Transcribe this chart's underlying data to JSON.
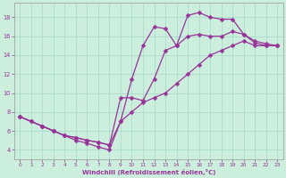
{
  "xlabel": "Windchill (Refroidissement éolien,°C)",
  "xlim": [
    -0.5,
    23.5
  ],
  "ylim": [
    3.0,
    19.5
  ],
  "xticks": [
    0,
    1,
    2,
    3,
    4,
    5,
    6,
    7,
    8,
    9,
    10,
    11,
    12,
    13,
    14,
    15,
    16,
    17,
    18,
    19,
    20,
    21,
    22,
    23
  ],
  "yticks": [
    4,
    6,
    8,
    10,
    12,
    14,
    16,
    18
  ],
  "bg_color": "#cceedd",
  "line_color": "#993399",
  "grid_color": "#aaddcc",
  "line1": {
    "x": [
      0,
      1,
      2,
      3,
      4,
      5,
      6,
      7,
      8,
      9,
      10,
      11,
      12,
      13,
      14,
      15,
      16,
      17,
      18,
      19,
      20,
      21,
      22,
      23
    ],
    "y": [
      7.5,
      7.0,
      6.5,
      6.0,
      5.5,
      5.3,
      5.0,
      4.8,
      4.5,
      7.0,
      8.0,
      9.0,
      9.5,
      10.0,
      11.0,
      12.0,
      13.0,
      14.0,
      14.5,
      15.0,
      15.5,
      15.0,
      15.0,
      15.0
    ]
  },
  "line2": {
    "x": [
      0,
      1,
      2,
      3,
      4,
      5,
      6,
      7,
      8,
      9,
      10,
      11,
      12,
      13,
      14,
      15,
      16,
      17,
      18,
      19,
      20,
      21,
      22,
      23
    ],
    "y": [
      7.5,
      7.0,
      6.5,
      6.0,
      5.5,
      5.0,
      4.7,
      4.3,
      4.0,
      7.0,
      11.5,
      15.0,
      17.0,
      16.8,
      15.0,
      18.2,
      18.5,
      18.0,
      17.8,
      17.8,
      16.2,
      15.3,
      15.0,
      15.0
    ]
  },
  "line3": {
    "x": [
      0,
      2,
      3,
      4,
      5,
      6,
      7,
      8,
      9,
      10,
      11,
      12,
      13,
      14,
      15,
      16,
      17,
      18,
      19,
      20,
      21,
      22,
      23
    ],
    "y": [
      7.5,
      6.5,
      6.0,
      5.5,
      5.3,
      5.0,
      4.8,
      4.5,
      9.5,
      9.5,
      9.2,
      11.5,
      14.5,
      15.0,
      16.0,
      16.2,
      16.0,
      16.0,
      16.5,
      16.2,
      15.5,
      15.2,
      15.0
    ]
  }
}
